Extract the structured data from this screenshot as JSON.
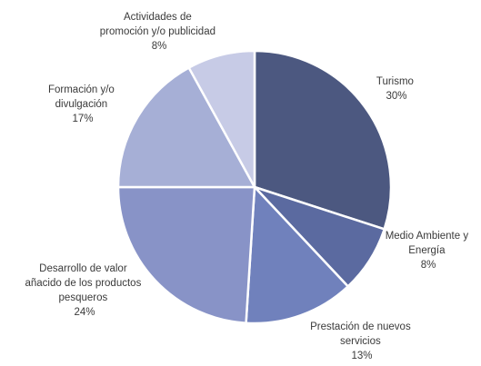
{
  "chart_data": {
    "type": "pie",
    "title": "",
    "categories": [
      "Turismo",
      "Medio Ambiente y Energía",
      "Prestación de nuevos servicios",
      "Desarrollo de valor añacido de los productos pesqueros",
      "Formación y/o divulgación",
      "Actividades de promoción y/o publicidad"
    ],
    "values": [
      30,
      8,
      13,
      24,
      17,
      8
    ],
    "value_labels": [
      "30%",
      "8%",
      "13%",
      "24%",
      "17%",
      "8%"
    ],
    "colors": [
      "#4c5880",
      "#5b6aa0",
      "#7081bc",
      "#8893c7",
      "#a6afd6",
      "#c7cbe6"
    ],
    "start_angle_deg": 0,
    "direction": "clockwise",
    "legend": "none"
  },
  "labels": [
    {
      "lines": [
        "Turismo",
        "30%"
      ]
    },
    {
      "lines": [
        "Medio Ambiente y",
        "Energía",
        "8%"
      ]
    },
    {
      "lines": [
        "Prestación de nuevos",
        "servicios",
        "13%"
      ]
    },
    {
      "lines": [
        "Desarrollo de valor",
        "añacido de los productos",
        "pesqueros",
        "24%"
      ]
    },
    {
      "lines": [
        "Formación y/o",
        "divulgación",
        "17%"
      ]
    },
    {
      "lines": [
        "Actividades de",
        "promoción y/o publicidad",
        "8%"
      ]
    }
  ]
}
